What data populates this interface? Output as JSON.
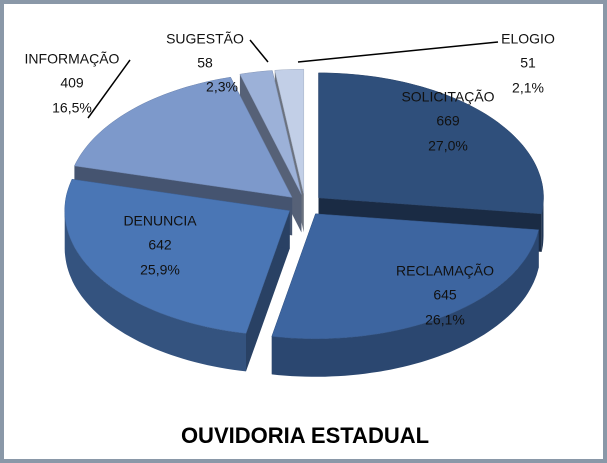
{
  "chart_data": {
    "type": "pie3d",
    "title": "OUVIDORIA ESTADUAL",
    "categories": [
      "SOLICITAÇÃO",
      "RECLAMAÇÃO",
      "DENUNCIA",
      "INFORMAÇÃO",
      "SUGESTÃO",
      "ELOGIO"
    ],
    "values": [
      669,
      645,
      642,
      409,
      58,
      51
    ],
    "percent_labels": [
      "27,0%",
      "26,1%",
      "25,9%",
      "16,5%",
      "2,3%",
      "2,1%"
    ],
    "colors": [
      "#2f4f7b",
      "#3d65a0",
      "#4a76b5",
      "#7d99cb",
      "#9cb1d8",
      "#c2cfe7"
    ]
  }
}
